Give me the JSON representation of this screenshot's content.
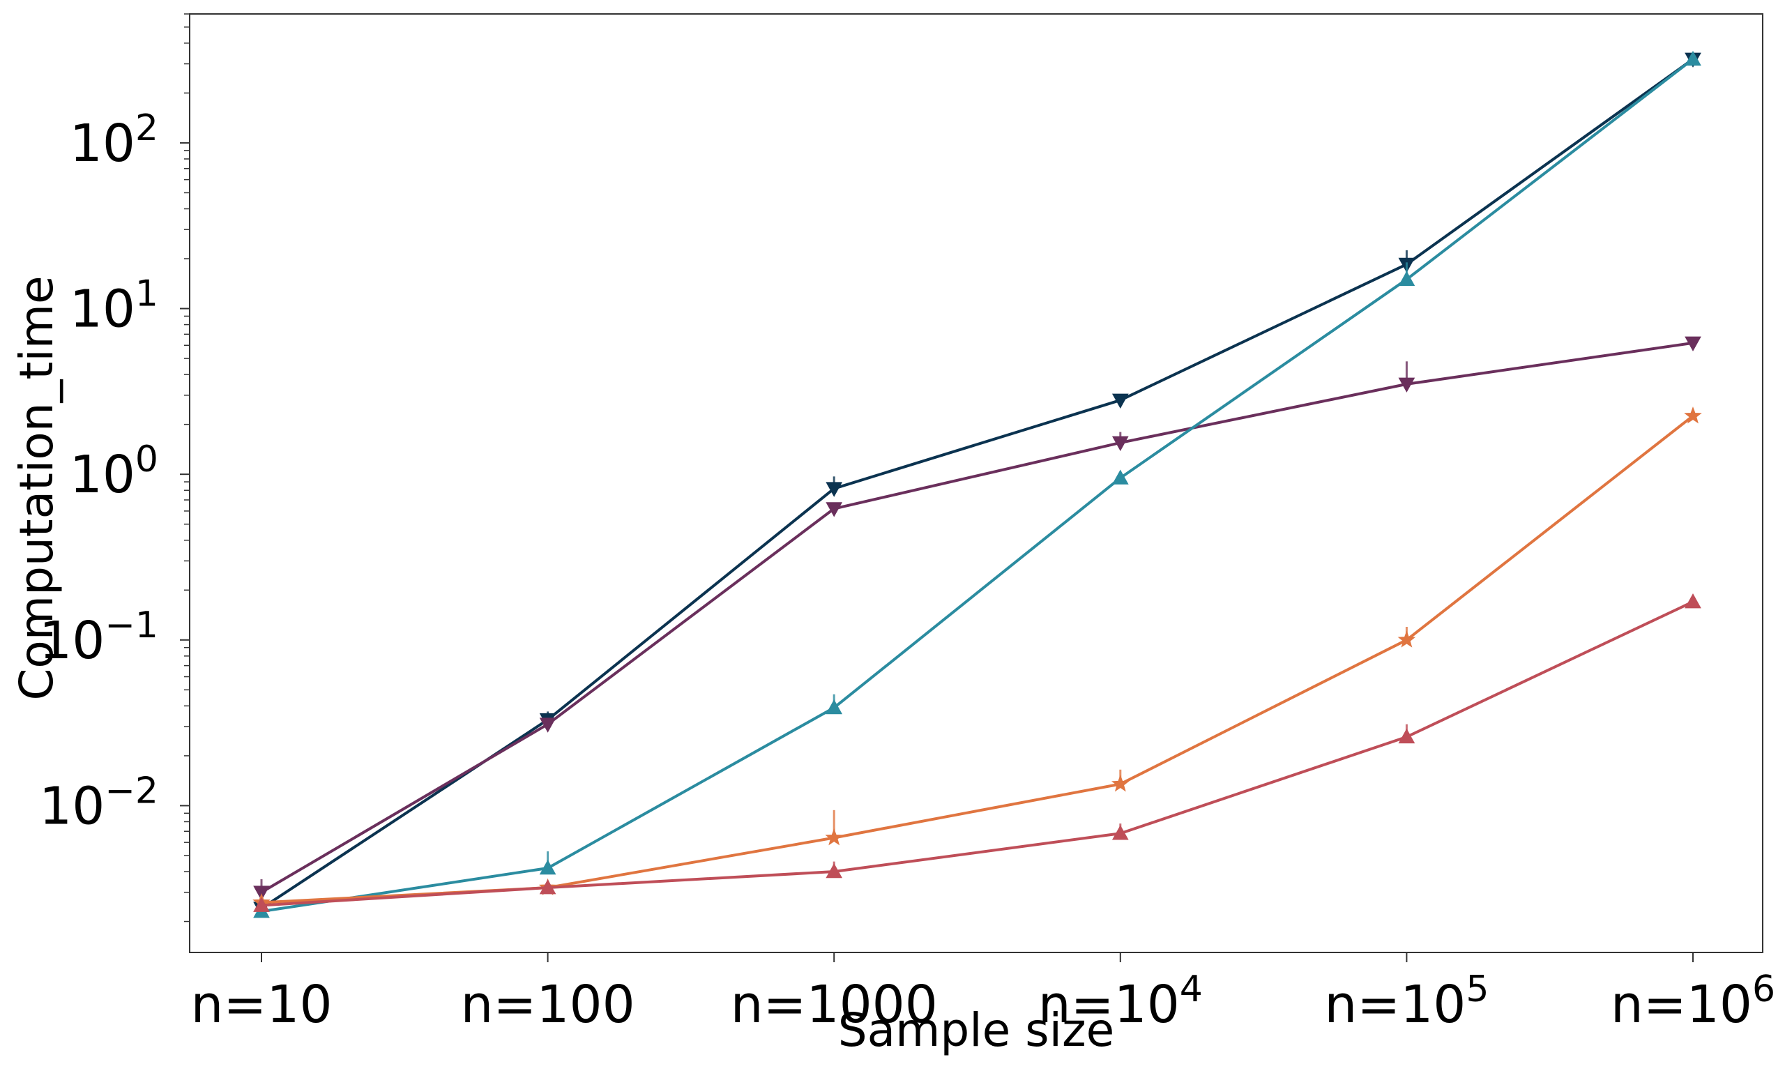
{
  "chart_data": {
    "type": "line",
    "xlabel": "Sample size",
    "ylabel": "Computation_time",
    "categories": [
      "n=10",
      "n=100",
      "n=1000",
      "n=10^4",
      "n=10^5",
      "n=10^6"
    ],
    "x_tick_labels": [
      {
        "base": "n=10",
        "exp": ""
      },
      {
        "base": "n=100",
        "exp": ""
      },
      {
        "base": "n=1000",
        "exp": ""
      },
      {
        "base": "n=10",
        "exp": "4"
      },
      {
        "base": "n=10",
        "exp": "5"
      },
      {
        "base": "n=10",
        "exp": "6"
      }
    ],
    "y_scale": "log",
    "ylim": [
      0.0013,
      600
    ],
    "y_ticks": [
      0.01,
      0.1,
      1,
      10,
      100
    ],
    "y_tick_labels": [
      {
        "base": "10",
        "exp": "−2"
      },
      {
        "base": "10",
        "exp": "−1"
      },
      {
        "base": "10",
        "exp": "0"
      },
      {
        "base": "10",
        "exp": "1"
      },
      {
        "base": "10",
        "exp": "2"
      }
    ],
    "grid": false,
    "legend": "none",
    "series": [
      {
        "color": "#0b3350",
        "marker": "triangle-down",
        "values": [
          0.0024,
          0.033,
          0.82,
          2.8,
          18.5,
          320
        ],
        "err_upper": [
          0,
          0.004,
          0.15,
          0,
          4,
          0
        ]
      },
      {
        "color": "#6a2f5c",
        "marker": "triangle-down",
        "values": [
          0.003,
          0.031,
          0.62,
          1.55,
          3.5,
          6.2
        ],
        "err_upper": [
          0.0006,
          0,
          0,
          0.25,
          1.3,
          0
        ]
      },
      {
        "color": "#2b8ca0",
        "marker": "triangle-up",
        "values": [
          0.0023,
          0.0042,
          0.039,
          0.95,
          15,
          320
        ],
        "err_upper": [
          0,
          0.0011,
          0.008,
          0,
          4,
          0
        ]
      },
      {
        "color": "#e07540",
        "marker": "star",
        "values": [
          0.0026,
          0.0032,
          0.0064,
          0.0135,
          0.1,
          2.25
        ],
        "err_upper": [
          0,
          0,
          0.003,
          0.003,
          0.02,
          0
        ]
      },
      {
        "color": "#bf4e58",
        "marker": "triangle-up",
        "values": [
          0.0025,
          0.0032,
          0.004,
          0.0068,
          0.026,
          0.17
        ],
        "err_upper": [
          0,
          0,
          0.0006,
          0.001,
          0.005,
          0
        ]
      }
    ]
  }
}
